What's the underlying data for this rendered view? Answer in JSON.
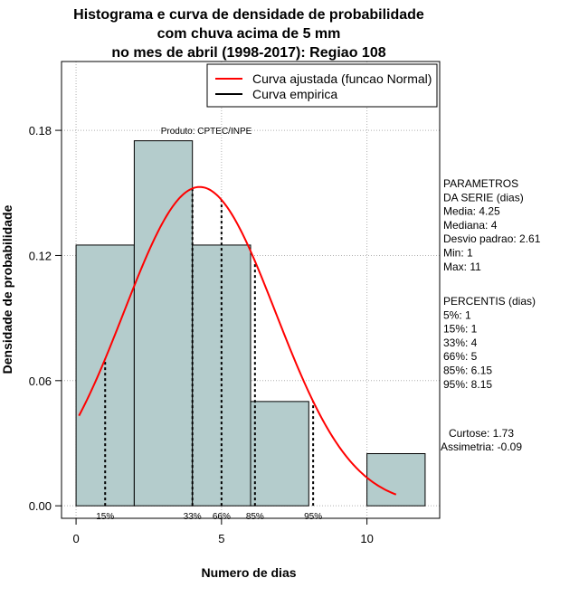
{
  "chart_data": {
    "type": "bar",
    "title_lines": [
      "Histograma e curva de densidade de probabilidade",
      "com chuva acima de 5 mm",
      "no mes de abril (1998-2017): Regiao 108"
    ],
    "xlabel": "Numero de dias",
    "ylabel": "Densidade de probabilidade",
    "xlim": [
      -0.5,
      12.5
    ],
    "ylim": [
      -0.006,
      0.213
    ],
    "x_ticks": [
      0,
      5,
      10
    ],
    "y_ticks": [
      0.0,
      0.06,
      0.12,
      0.18
    ],
    "y_tick_labels": [
      "0.00",
      "0.06",
      "0.12",
      "0.18"
    ],
    "grid_x": [
      0,
      5,
      10
    ],
    "grid_y": [
      0.0,
      0.06,
      0.12,
      0.18
    ],
    "grid": true,
    "bar_color": "#b4cccc",
    "bins": [
      {
        "x0": 0,
        "x1": 2,
        "value": 0.125
      },
      {
        "x0": 2,
        "x1": 4,
        "value": 0.175
      },
      {
        "x0": 4,
        "x1": 6,
        "value": 0.125
      },
      {
        "x0": 6,
        "x1": 8,
        "value": 0.05
      },
      {
        "x0": 8,
        "x1": 10,
        "value": 0.0
      },
      {
        "x0": 10,
        "x1": 12,
        "value": 0.025
      }
    ],
    "normal_curve": {
      "name": "Curva ajustada (funcao Normal)",
      "color": "#ff0000",
      "mean": 4.25,
      "sd": 2.61,
      "x_range": [
        0.1,
        11.0
      ]
    },
    "empirical_curve": {
      "name": "Curva empirica",
      "color": "#000000"
    },
    "legend_position": "top-right",
    "percentile_lines": [
      {
        "x": 1,
        "label": "15%"
      },
      {
        "x": 4,
        "label": "33%"
      },
      {
        "x": 5,
        "label": "66%"
      },
      {
        "x": 6.15,
        "label": "85%"
      },
      {
        "x": 8.15,
        "label": "95%"
      }
    ],
    "annotation": "Produto: CPTEC/INPE"
  },
  "side_panel": {
    "parametros": [
      "PARAMETROS",
      "DA SERIE (dias)",
      "   Media: 4.25",
      "   Mediana: 4",
      "   Desvio padrao: 2.61",
      "   Min: 1",
      "   Max: 11"
    ],
    "percentis": [
      "PERCENTIS (dias)",
      "   5%: 1",
      "   15%: 1",
      "   33%: 4",
      "   66%: 5",
      "   85%: 6.15",
      "   95%: 8.15"
    ],
    "curtose": "Curtose: 1.73",
    "assimetria": "Assimetria: -0.09"
  }
}
